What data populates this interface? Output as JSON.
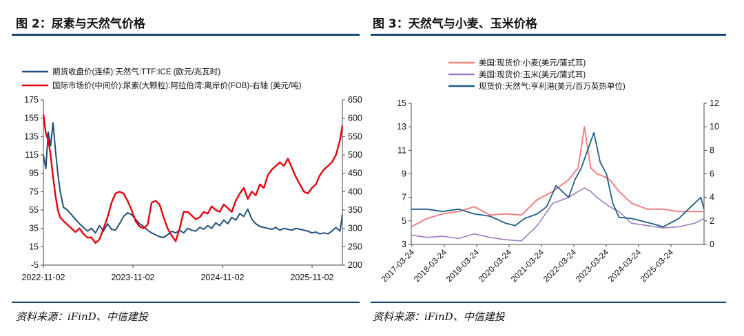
{
  "left_title": "图 2：尿素与天然气价格",
  "right_title": "图 3：天然气与小麦、玉米价格",
  "left_source": "资料来源：iFinD、中信建投",
  "right_source": "资料来源：iFinD、中信建投",
  "colors": {
    "accent": "#1a4a78",
    "navy": "#1f4e79",
    "red": "#e8000b",
    "pink": "#f08080",
    "purple": "#9b7cc4",
    "blue": "#1f5b86"
  },
  "chart_data": [
    {
      "type": "line",
      "legend": [
        "期货收盘价(连续):天然气:TTF:ICE (欧元/兆瓦时)",
        "国际市场价(中间价):尿素(大颗粒):阿拉伯湾:离岸价(FOB)-右轴 (美元/吨)"
      ],
      "x_tick_labels": [
        "2022-11-02",
        "2023-11-02",
        "2024-11-02",
        "2025-11-02"
      ],
      "x_range": [
        0,
        37.3
      ],
      "y_left": {
        "min": -5,
        "max": 175,
        "ticks": [
          -5,
          15,
          35,
          55,
          75,
          95,
          115,
          135,
          155,
          175
        ]
      },
      "y_right": {
        "min": 200,
        "max": 650,
        "ticks": [
          200,
          250,
          300,
          350,
          400,
          450,
          500,
          550,
          600,
          650
        ]
      },
      "series": [
        {
          "name": "TTF",
          "axis": "left",
          "color": "#1f4e79",
          "x": [
            0,
            0.3,
            0.6,
            0.9,
            1.2,
            1.5,
            1.8,
            2.1,
            2.5,
            3,
            3.5,
            4,
            4.5,
            5,
            5.5,
            6,
            6.5,
            7,
            7.5,
            8,
            8.5,
            9,
            9.5,
            10,
            10.5,
            11,
            11.5,
            12,
            12.5,
            13,
            13.5,
            14,
            14.5,
            15,
            15.5,
            16,
            16.5,
            17,
            17.5,
            18,
            18.5,
            19,
            19.5,
            20,
            20.5,
            21,
            21.5,
            22,
            22.5,
            23,
            23.5,
            24,
            24.5,
            25,
            25.5,
            26,
            26.5,
            27,
            27.5,
            28,
            28.5,
            29,
            29.5,
            30,
            30.5,
            31,
            31.5,
            32,
            32.5,
            33,
            33.5,
            34,
            34.5,
            35,
            35.5,
            36,
            36.5,
            37,
            37.3
          ],
          "y": [
            115,
            100,
            140,
            125,
            150,
            120,
            95,
            75,
            58,
            55,
            50,
            45,
            40,
            36,
            32,
            35,
            30,
            38,
            32,
            40,
            34,
            33,
            40,
            48,
            52,
            50,
            45,
            40,
            37,
            33,
            30,
            28,
            26,
            25,
            28,
            32,
            30,
            33,
            30,
            35,
            33,
            32,
            36,
            34,
            38,
            35,
            41,
            38,
            44,
            40,
            47,
            44,
            51,
            48,
            56,
            45,
            40,
            37,
            36,
            35,
            34,
            36,
            33,
            35,
            34,
            33,
            35,
            34,
            33,
            32,
            30,
            31,
            29,
            30,
            29,
            32,
            36,
            32,
            50
          ]
        },
        {
          "name": "Urea FOB",
          "axis": "right",
          "color": "#e8000b",
          "x": [
            0,
            0.3,
            0.6,
            0.9,
            1.2,
            1.5,
            1.8,
            2.1,
            2.5,
            3,
            3.5,
            4,
            4.5,
            5,
            5.5,
            6,
            6.5,
            7,
            7.5,
            8,
            8.5,
            9,
            9.5,
            10,
            10.5,
            11,
            11.5,
            12,
            12.5,
            13,
            13.5,
            14,
            14.5,
            15,
            15.5,
            16,
            16.5,
            17,
            17.5,
            18,
            18.5,
            19,
            19.5,
            20,
            20.5,
            21,
            21.5,
            22,
            22.5,
            23,
            23.5,
            24,
            24.5,
            25,
            25.5,
            26,
            26.5,
            27,
            27.5,
            28,
            28.5,
            29,
            29.5,
            30,
            30.5,
            31,
            31.5,
            32,
            32.5,
            33,
            33.5,
            34,
            34.5,
            35,
            35.5,
            36,
            36.5,
            37,
            37.3
          ],
          "y": [
            610,
            560,
            540,
            500,
            440,
            390,
            350,
            330,
            320,
            310,
            300,
            290,
            300,
            285,
            275,
            275,
            260,
            270,
            300,
            330,
            370,
            395,
            400,
            395,
            375,
            350,
            320,
            305,
            300,
            310,
            370,
            375,
            365,
            330,
            300,
            280,
            265,
            300,
            345,
            345,
            335,
            325,
            330,
            345,
            340,
            360,
            350,
            345,
            365,
            355,
            345,
            375,
            395,
            410,
            380,
            400,
            390,
            420,
            410,
            445,
            460,
            470,
            480,
            470,
            490,
            465,
            440,
            420,
            400,
            395,
            410,
            420,
            445,
            460,
            470,
            480,
            500,
            540,
            580
          ]
        }
      ]
    },
    {
      "type": "line",
      "legend": [
        "美国:现货价:小麦(美元/蒲式耳)",
        "美国:现货价:玉米(美元/蒲式耳)",
        "现货价:天然气:亨利港(美元/百万英热单位)"
      ],
      "x_tick_labels": [
        "2017-03-24",
        "2018-03-24",
        "2019-03-24",
        "2020-03-24",
        "2021-03-24",
        "2022-03-24",
        "2023-03-24",
        "2024-03-24",
        "2025-03-24"
      ],
      "x_range": [
        0,
        9.3
      ],
      "y_left": {
        "min": 3,
        "max": 15,
        "ticks": [
          3,
          5,
          7,
          9,
          11,
          13,
          15
        ]
      },
      "y_right": {
        "min": 0,
        "max": 12,
        "ticks": [
          0,
          2,
          4,
          6,
          8,
          10,
          12
        ]
      },
      "series": [
        {
          "name": "Wheat",
          "axis": "left",
          "color": "#f08080",
          "x": [
            0,
            0.5,
            1,
            1.5,
            2,
            2.5,
            3,
            3.5,
            4,
            4.5,
            5,
            5.3,
            5.5,
            5.7,
            5.9,
            6.1,
            6.3,
            6.6,
            7,
            7.5,
            8,
            8.5,
            9,
            9.3
          ],
          "y": [
            4.5,
            5.2,
            5.6,
            5.8,
            6.2,
            5.5,
            5.6,
            5.5,
            6.8,
            7.5,
            8.5,
            9.5,
            13,
            9.5,
            9.0,
            8.8,
            8.5,
            7.5,
            6.5,
            6.0,
            6.0,
            5.8,
            5.8,
            5.8
          ]
        },
        {
          "name": "Corn",
          "axis": "left",
          "color": "#9b7cc4",
          "x": [
            0,
            0.5,
            1,
            1.5,
            2,
            2.5,
            3,
            3.5,
            4,
            4.5,
            5,
            5.3,
            5.5,
            5.7,
            5.9,
            6.1,
            6.3,
            6.6,
            7,
            7.5,
            8,
            8.5,
            9,
            9.3
          ],
          "y": [
            3.8,
            3.6,
            3.7,
            3.5,
            3.9,
            3.6,
            3.4,
            3.3,
            4.6,
            6.5,
            7.0,
            7.5,
            7.8,
            7.5,
            7.0,
            6.6,
            6.2,
            5.8,
            4.8,
            4.6,
            4.4,
            4.5,
            4.8,
            5.2
          ]
        },
        {
          "name": "Henry Hub",
          "axis": "right",
          "color": "#1f5b86",
          "x": [
            0,
            0.5,
            1,
            1.5,
            2,
            2.5,
            3,
            3.3,
            3.6,
            4,
            4.3,
            4.6,
            5,
            5.2,
            5.4,
            5.6,
            5.8,
            6,
            6.2,
            6.4,
            6.6,
            7,
            7.3,
            7.6,
            8,
            8.5,
            8.8,
            9,
            9.2,
            9.3
          ],
          "y": [
            3,
            3,
            2.8,
            3,
            2.6,
            2.4,
            1.8,
            1.6,
            2.2,
            2.6,
            3.2,
            5.0,
            4.0,
            5.5,
            6.5,
            8.0,
            9.5,
            7.0,
            6.0,
            3.5,
            2.3,
            2.2,
            2.0,
            1.8,
            1.5,
            2.2,
            3.0,
            3.5,
            4.0,
            3.0
          ]
        }
      ]
    }
  ]
}
